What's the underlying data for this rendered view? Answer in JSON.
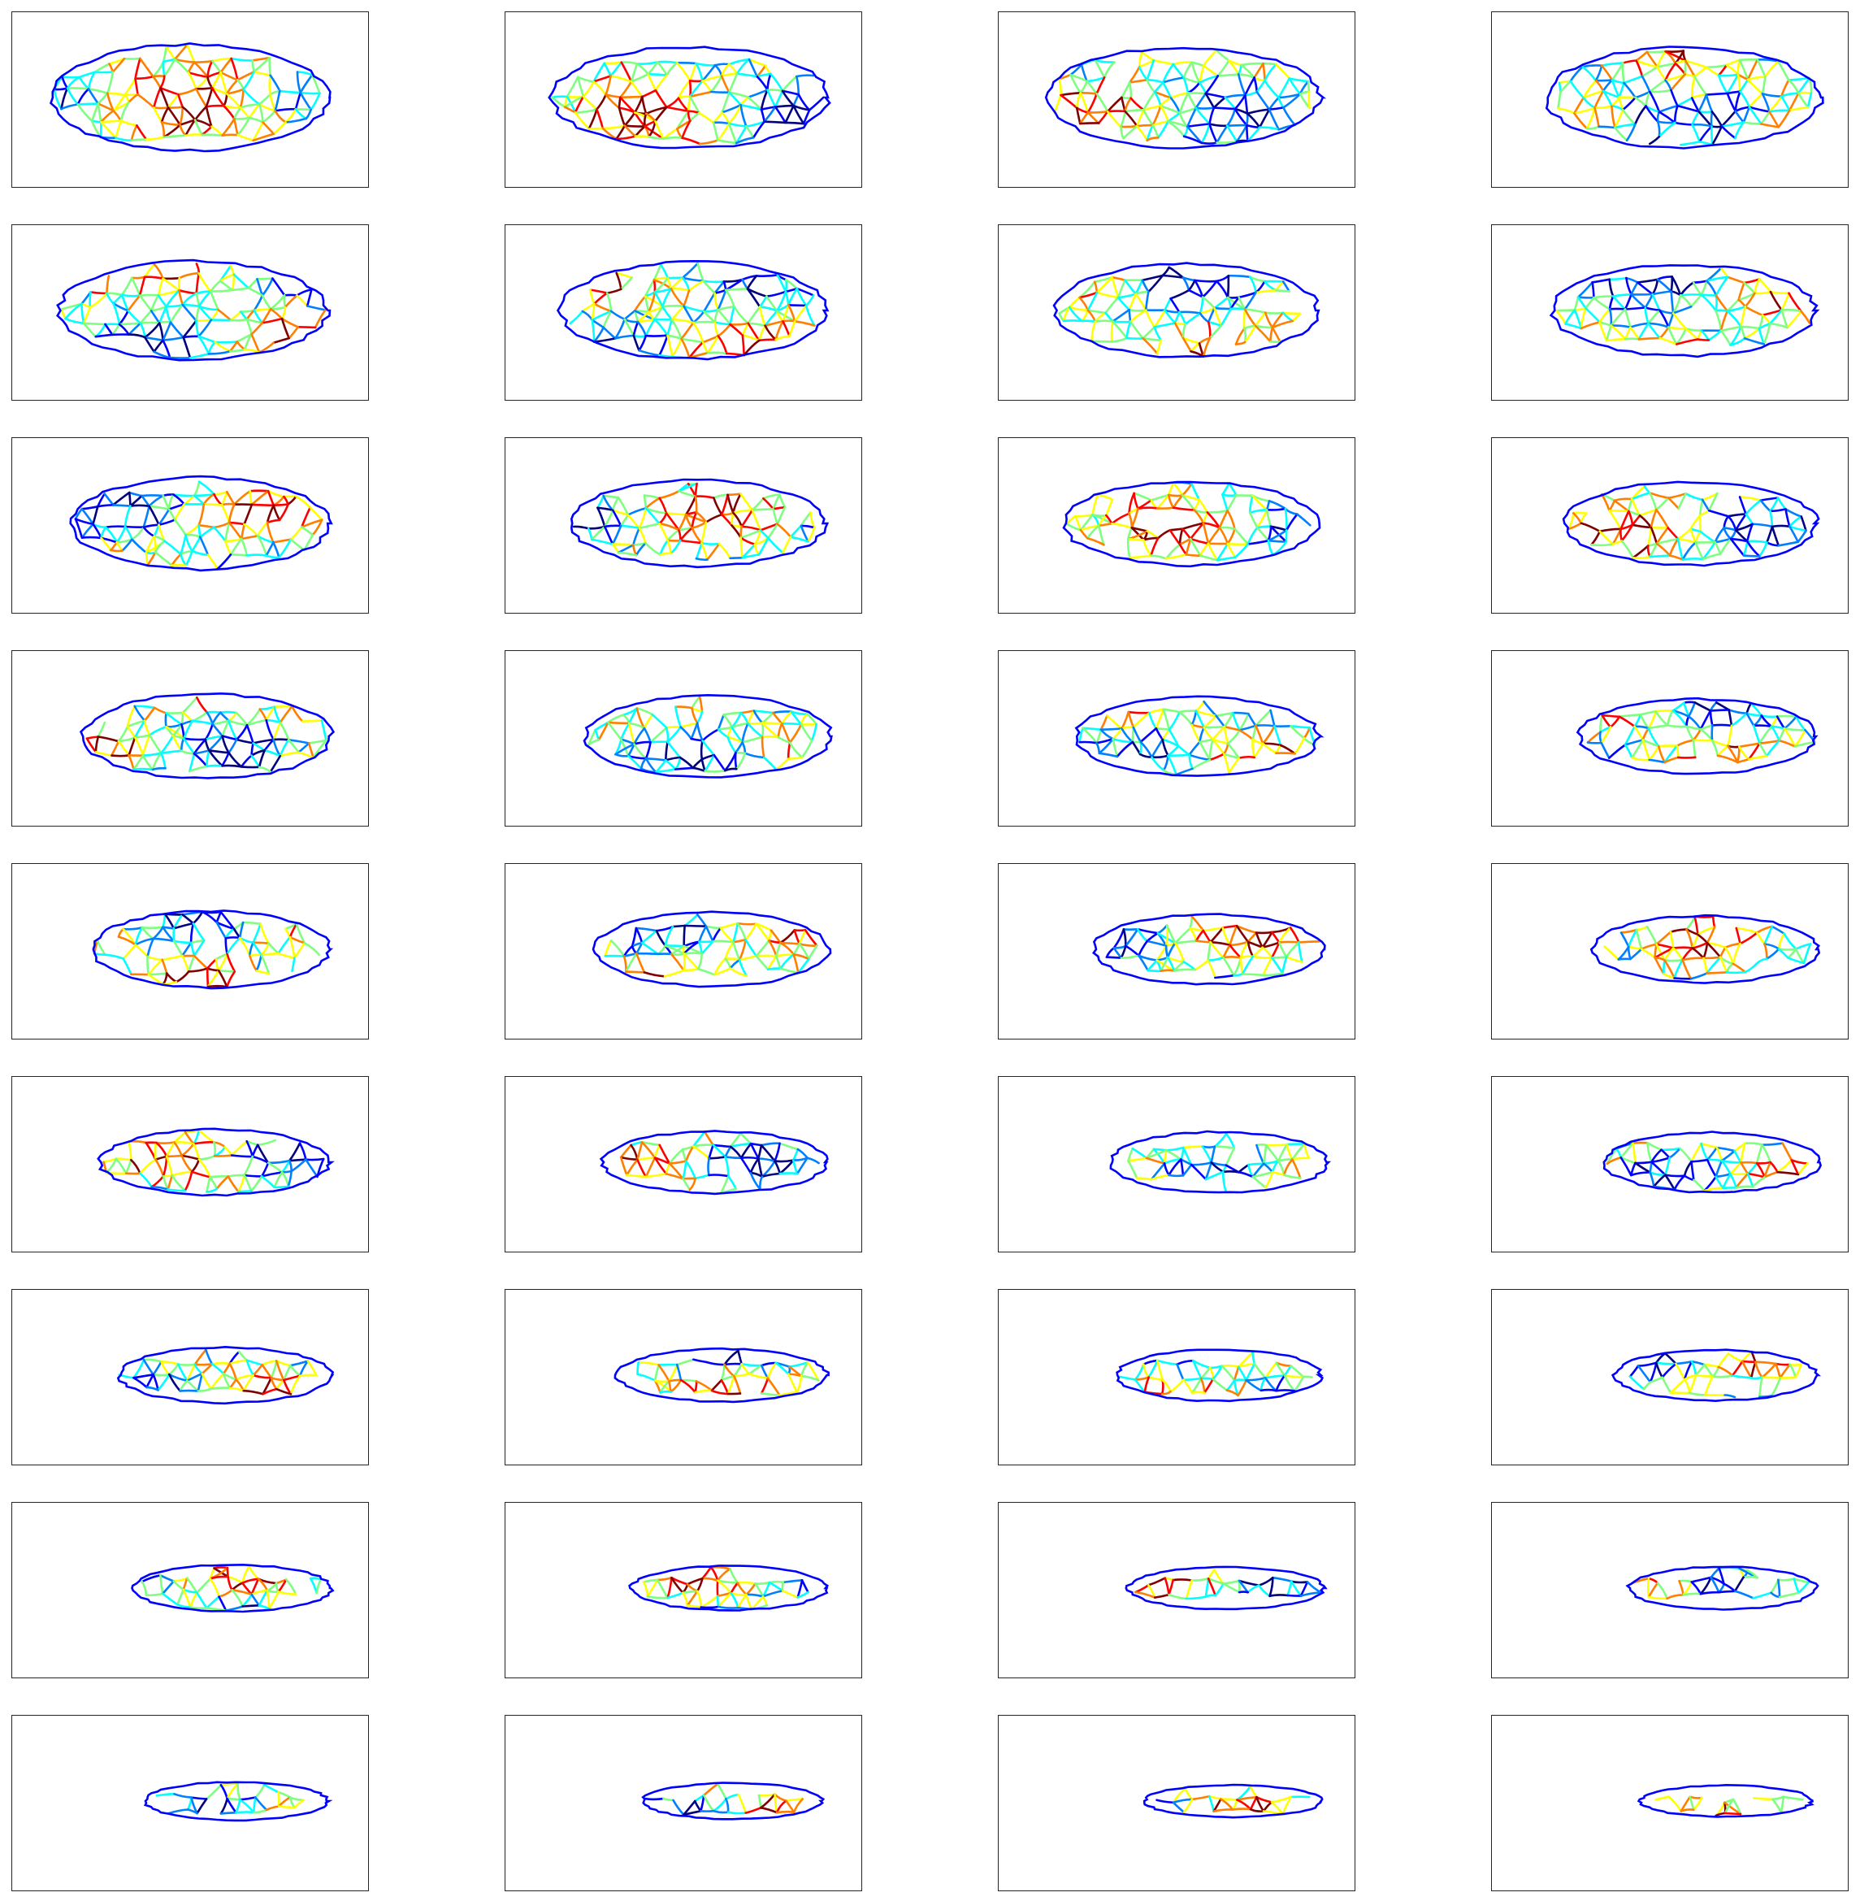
{
  "figure": {
    "rows": 9,
    "cols": 4,
    "colormap": [
      "#00007f",
      "#0000ff",
      "#007fff",
      "#00ffff",
      "#7fff7f",
      "#ffff00",
      "#ff7f00",
      "#ff0000",
      "#7f0000"
    ],
    "frame_color": "#262626",
    "background": "#ffffff"
  },
  "panels": [
    {
      "scale": 1.0,
      "ratio": 0.36,
      "offset": 0.0,
      "seed": 11
    },
    {
      "scale": 1.0,
      "ratio": 0.34,
      "offset": 0.02,
      "seed": 12
    },
    {
      "scale": 0.99,
      "ratio": 0.34,
      "offset": 0.02,
      "seed": 13
    },
    {
      "scale": 0.99,
      "ratio": 0.34,
      "offset": 0.04,
      "seed": 14
    },
    {
      "scale": 0.97,
      "ratio": 0.34,
      "offset": 0.01,
      "seed": 15
    },
    {
      "scale": 0.96,
      "ratio": 0.34,
      "offset": 0.03,
      "seed": 16
    },
    {
      "scale": 0.95,
      "ratio": 0.33,
      "offset": 0.03,
      "seed": 17
    },
    {
      "scale": 0.95,
      "ratio": 0.32,
      "offset": 0.04,
      "seed": 18
    },
    {
      "scale": 0.93,
      "ratio": 0.33,
      "offset": 0.03,
      "seed": 19
    },
    {
      "scale": 0.92,
      "ratio": 0.31,
      "offset": 0.04,
      "seed": 20
    },
    {
      "scale": 0.92,
      "ratio": 0.3,
      "offset": 0.04,
      "seed": 21
    },
    {
      "scale": 0.91,
      "ratio": 0.3,
      "offset": 0.06,
      "seed": 22
    },
    {
      "scale": 0.9,
      "ratio": 0.31,
      "offset": 0.05,
      "seed": 23
    },
    {
      "scale": 0.89,
      "ratio": 0.3,
      "offset": 0.07,
      "seed": 24
    },
    {
      "scale": 0.88,
      "ratio": 0.29,
      "offset": 0.06,
      "seed": 25
    },
    {
      "scale": 0.86,
      "ratio": 0.28,
      "offset": 0.08,
      "seed": 26
    },
    {
      "scale": 0.86,
      "ratio": 0.29,
      "offset": 0.06,
      "seed": 27
    },
    {
      "scale": 0.85,
      "ratio": 0.28,
      "offset": 0.08,
      "seed": 28
    },
    {
      "scale": 0.83,
      "ratio": 0.27,
      "offset": 0.09,
      "seed": 29
    },
    {
      "scale": 0.82,
      "ratio": 0.26,
      "offset": 0.1,
      "seed": 30
    },
    {
      "scale": 0.83,
      "ratio": 0.25,
      "offset": 0.07,
      "seed": 31
    },
    {
      "scale": 0.81,
      "ratio": 0.24,
      "offset": 0.09,
      "seed": 32
    },
    {
      "scale": 0.79,
      "ratio": 0.24,
      "offset": 0.12,
      "seed": 33
    },
    {
      "scale": 0.78,
      "ratio": 0.24,
      "offset": 0.12,
      "seed": 34
    },
    {
      "scale": 0.77,
      "ratio": 0.22,
      "offset": 0.1,
      "seed": 35
    },
    {
      "scale": 0.76,
      "ratio": 0.21,
      "offset": 0.11,
      "seed": 36
    },
    {
      "scale": 0.74,
      "ratio": 0.21,
      "offset": 0.12,
      "seed": 37
    },
    {
      "scale": 0.73,
      "ratio": 0.21,
      "offset": 0.13,
      "seed": 38
    },
    {
      "scale": 0.72,
      "ratio": 0.19,
      "offset": 0.12,
      "seed": 39
    },
    {
      "scale": 0.71,
      "ratio": 0.18,
      "offset": 0.13,
      "seed": 40
    },
    {
      "scale": 0.71,
      "ratio": 0.17,
      "offset": 0.14,
      "seed": 41
    },
    {
      "scale": 0.68,
      "ratio": 0.18,
      "offset": 0.15,
      "seed": 42
    },
    {
      "scale": 0.66,
      "ratio": 0.16,
      "offset": 0.13,
      "seed": 43
    },
    {
      "scale": 0.65,
      "ratio": 0.15,
      "offset": 0.14,
      "seed": 44
    },
    {
      "scale": 0.64,
      "ratio": 0.13,
      "offset": 0.16,
      "seed": 45
    },
    {
      "scale": 0.62,
      "ratio": 0.13,
      "offset": 0.16,
      "seed": 46
    }
  ]
}
